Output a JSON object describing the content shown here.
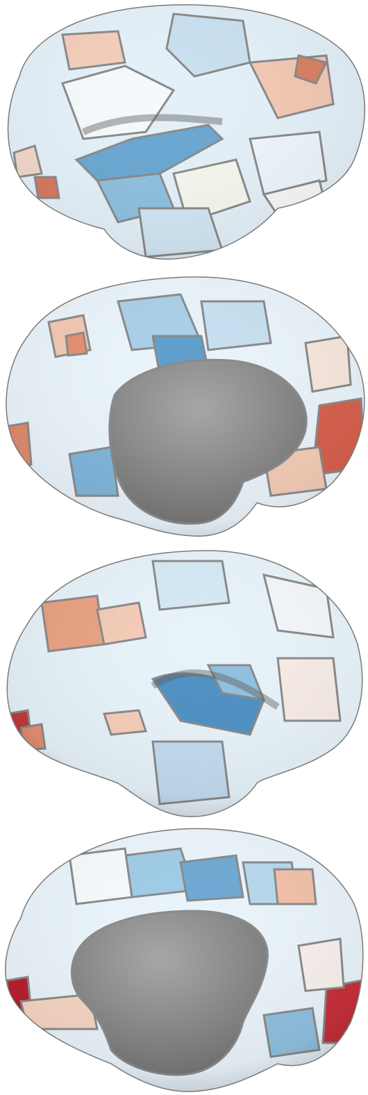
{
  "figure": {
    "background": "#ffffff",
    "colormap": {
      "negative_strong": "#3f86bd",
      "negative_mid": "#8fc0df",
      "negative_weak": "#d6e9f5",
      "neutral": "#f7f7f7",
      "positive_weak": "#f6d4c2",
      "positive_mid": "#e7957a",
      "positive_strong": "#b81e2e"
    },
    "parcel_border_color": "#8a8a8a",
    "medial_wall_color": "#9c9c9c"
  },
  "views": [
    {
      "name": "left-hemisphere-lateral"
    },
    {
      "name": "left-hemisphere-medial"
    },
    {
      "name": "right-hemisphere-lateral"
    },
    {
      "name": "right-hemisphere-medial"
    }
  ]
}
